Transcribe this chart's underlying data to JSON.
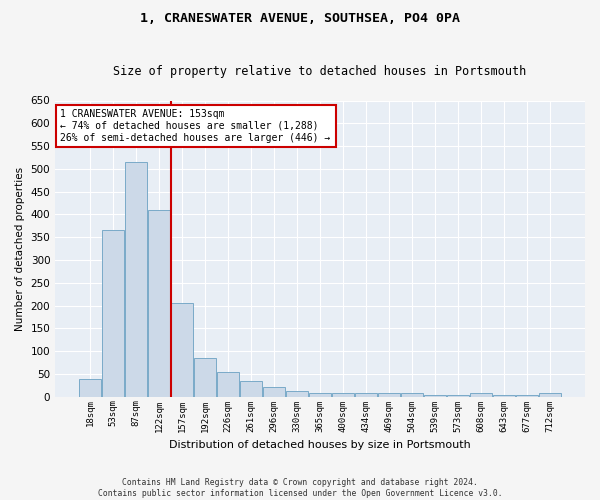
{
  "title": "1, CRANESWATER AVENUE, SOUTHSEA, PO4 0PA",
  "subtitle": "Size of property relative to detached houses in Portsmouth",
  "xlabel": "Distribution of detached houses by size in Portsmouth",
  "ylabel": "Number of detached properties",
  "categories": [
    "18sqm",
    "53sqm",
    "87sqm",
    "122sqm",
    "157sqm",
    "192sqm",
    "226sqm",
    "261sqm",
    "296sqm",
    "330sqm",
    "365sqm",
    "400sqm",
    "434sqm",
    "469sqm",
    "504sqm",
    "539sqm",
    "573sqm",
    "608sqm",
    "643sqm",
    "677sqm",
    "712sqm"
  ],
  "values": [
    38,
    365,
    515,
    410,
    205,
    85,
    55,
    35,
    22,
    12,
    8,
    8,
    8,
    8,
    8,
    3,
    3,
    8,
    3,
    3,
    8
  ],
  "bar_color": "#ccd9e8",
  "bar_edge_color": "#7aaac8",
  "annotation_text_line1": "1 CRANESWATER AVENUE: 153sqm",
  "annotation_text_line2": "← 74% of detached houses are smaller (1,288)",
  "annotation_text_line3": "26% of semi-detached houses are larger (446) →",
  "annotation_box_color": "#ffffff",
  "annotation_box_edge": "#cc0000",
  "vline_color": "#cc0000",
  "background_color": "#e8eef5",
  "grid_color": "#ffffff",
  "footer_line1": "Contains HM Land Registry data © Crown copyright and database right 2024.",
  "footer_line2": "Contains public sector information licensed under the Open Government Licence v3.0.",
  "ylim": [
    0,
    650
  ],
  "yticks": [
    0,
    50,
    100,
    150,
    200,
    250,
    300,
    350,
    400,
    450,
    500,
    550,
    600,
    650
  ],
  "fig_bg": "#f5f5f5"
}
